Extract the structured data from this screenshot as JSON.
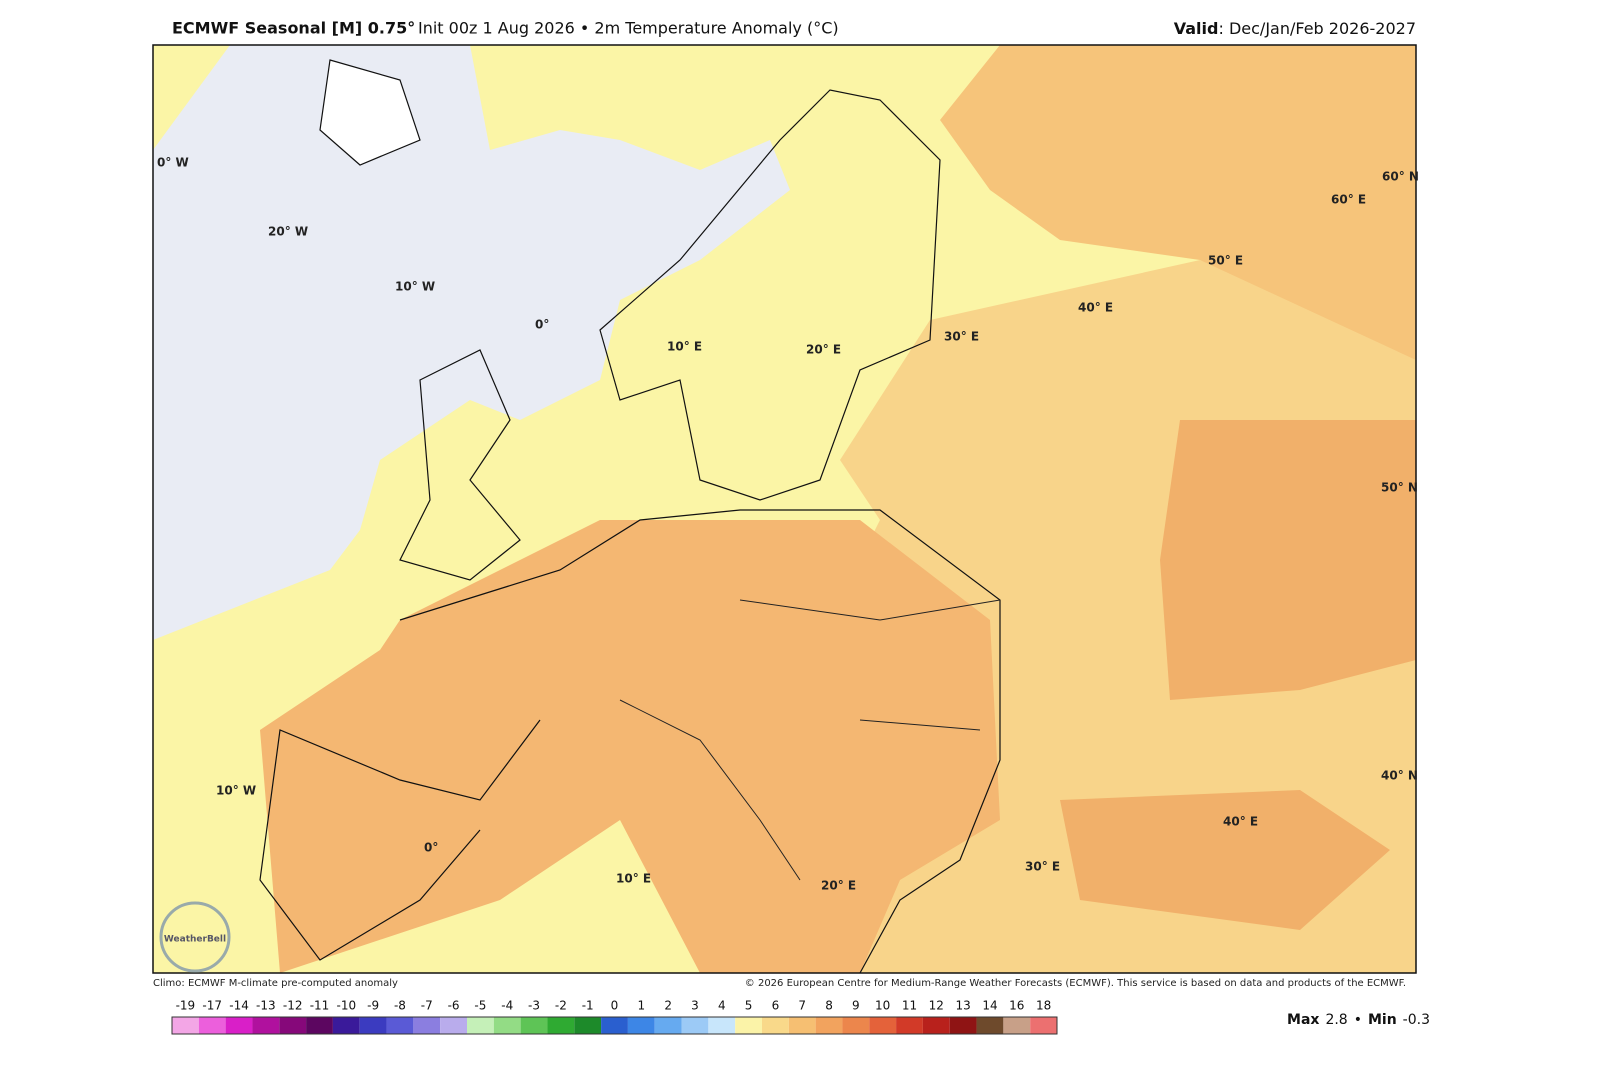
{
  "header": {
    "title_bold": "ECMWF Seasonal [M] 0.75°",
    "title_rest": "Init 00z 1 Aug 2026 • 2m Temperature Anomaly (°C)",
    "valid_label": "Valid",
    "valid_value": ": Dec/Jan/Feb 2026-2027"
  },
  "map": {
    "graticule_labels": [
      "0° W",
      "20° W",
      "10° W",
      "0°",
      "10° E",
      "20° E",
      "30° E",
      "40° E",
      "50° E",
      "60° E",
      "60° N",
      "50° N",
      "40° N",
      "40° E",
      "30° E",
      "20° E",
      "10° E",
      "0°",
      "10° W"
    ],
    "logo": "WeatherBell"
  },
  "footer": {
    "left": "Climo: ECMWF M-climate pre-computed anomaly",
    "right": "© 2026 European Centre for Medium-Range Weather Forecasts (ECMWF). This service is based on data and products of the ECMWF."
  },
  "colorbar": {
    "labels": [
      -19,
      -17,
      -14,
      -13,
      -12,
      -11,
      -10,
      -9,
      -8,
      -7,
      -6,
      -5,
      -4,
      -3,
      -2,
      -1,
      0,
      1,
      2,
      3,
      4,
      5,
      6,
      7,
      8,
      9,
      10,
      11,
      12,
      13,
      14,
      16,
      18
    ],
    "colors": [
      "#f3a6e6",
      "#ec5fdc",
      "#d91fc8",
      "#b0119e",
      "#86087a",
      "#5c0660",
      "#3a1a9a",
      "#3b3bc0",
      "#5a5ad6",
      "#8b7ee0",
      "#b9acec",
      "#c5f0b8",
      "#93dc85",
      "#5ec456",
      "#2faa32",
      "#1d8a2a",
      "#2a5fcf",
      "#3d86e6",
      "#66aaf0",
      "#9ccaf6",
      "#c8e6fb",
      "#fbf3a8",
      "#f9d98a",
      "#f6bf72",
      "#f2a35e",
      "#ec864c",
      "#e4623a",
      "#d23a28",
      "#b8211c",
      "#8f1414",
      "#6e4a2c",
      "#c8a088",
      "#ec7070"
    ]
  },
  "stats": {
    "max_label": "Max",
    "max": 2.8,
    "min_label": "Min",
    "min": -0.3
  }
}
